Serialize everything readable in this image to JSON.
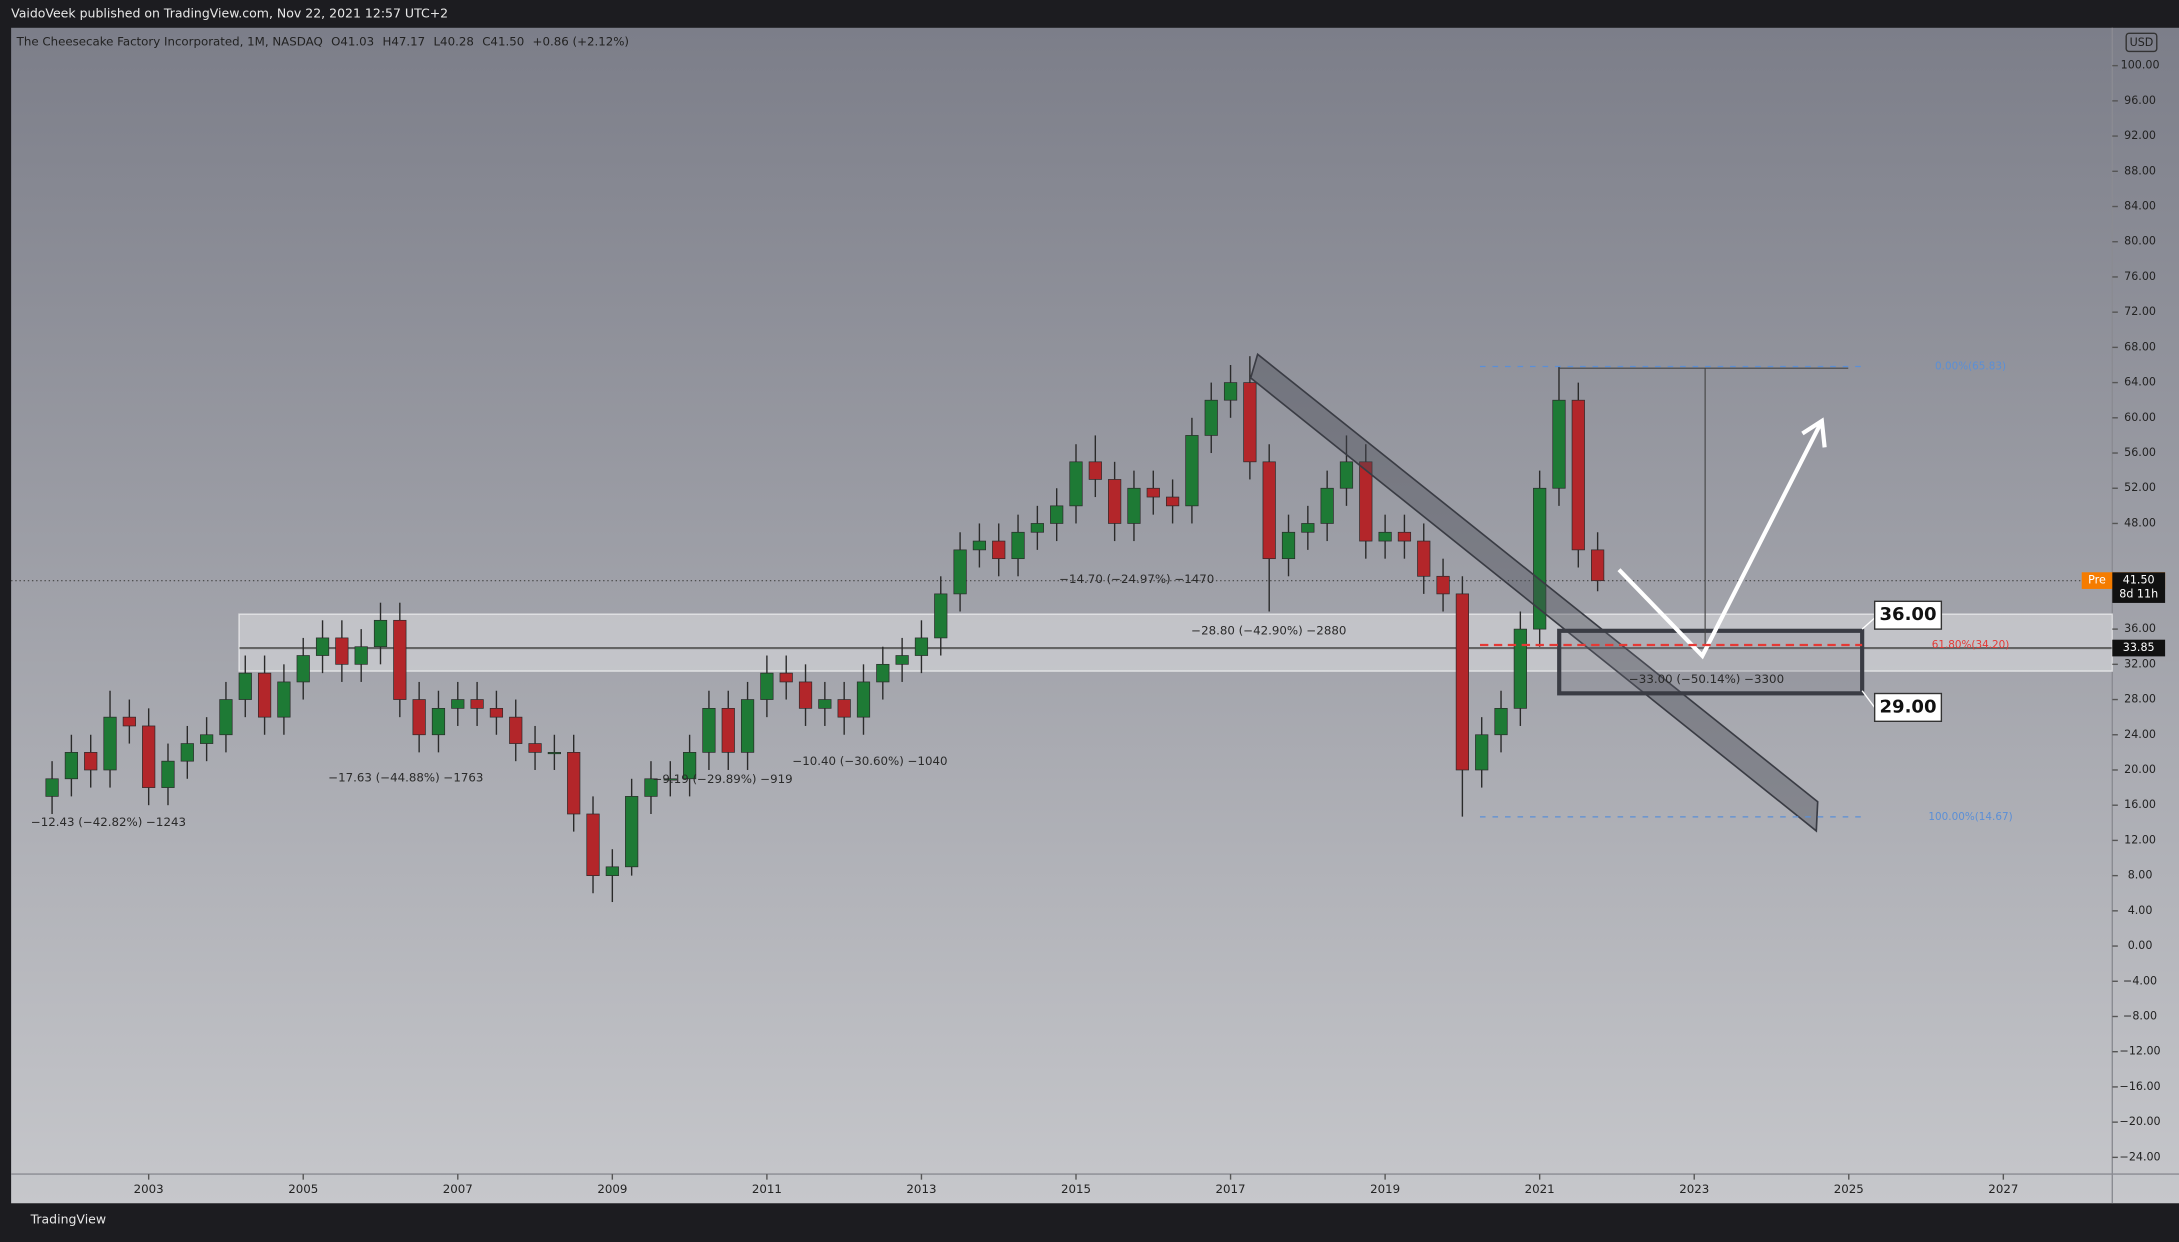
{
  "header": {
    "publisher": "VaidoVeek published on TradingView.com, Nov 22, 2021 12:57 UTC+2",
    "footer": "TradingView"
  },
  "chart_data": {
    "type": "candlestick",
    "title": "The Cheesecake Factory Incorporated, 1M, NASDAQ",
    "legend": [
      "O41.03",
      "H47.17",
      "L40.28",
      "C41.50",
      "+0.86 (+2.12%)"
    ],
    "currency": "USD",
    "x": [
      2001.75,
      2002,
      2002.25,
      2002.5,
      2002.75,
      2003,
      2003.25,
      2003.5,
      2003.75,
      2004,
      2004.25,
      2004.5,
      2004.75,
      2005,
      2005.25,
      2005.5,
      2005.75,
      2006,
      2006.25,
      2006.5,
      2006.75,
      2007,
      2007.25,
      2007.5,
      2007.75,
      2008,
      2008.25,
      2008.5,
      2008.75,
      2009,
      2009.25,
      2009.5,
      2009.75,
      2010,
      2010.25,
      2010.5,
      2010.75,
      2011,
      2011.25,
      2011.5,
      2011.75,
      2012,
      2012.25,
      2012.5,
      2012.75,
      2013,
      2013.25,
      2013.5,
      2013.75,
      2014,
      2014.25,
      2014.5,
      2014.75,
      2015,
      2015.25,
      2015.5,
      2015.75,
      2016,
      2016.25,
      2016.5,
      2016.75,
      2017,
      2017.25,
      2017.5,
      2017.75,
      2018,
      2018.25,
      2018.5,
      2018.75,
      2019,
      2019.25,
      2019.5,
      2019.75,
      2020,
      2020.25,
      2020.5,
      2020.75,
      2021,
      2021.25,
      2021.5,
      2021.75
    ],
    "open": [
      17,
      19,
      22,
      20,
      26,
      25,
      18,
      21,
      23,
      24,
      28,
      31,
      26,
      30,
      33,
      35,
      32,
      34,
      37,
      28,
      24,
      27,
      28,
      27,
      26,
      23,
      22,
      22,
      15,
      8,
      9,
      17,
      19,
      19,
      22,
      27,
      22,
      28,
      31,
      30,
      27,
      28,
      26,
      30,
      32,
      33,
      35,
      40,
      45,
      46,
      44,
      47,
      48,
      50,
      55,
      53,
      48,
      52,
      51,
      50,
      58,
      62,
      64,
      55,
      44,
      47,
      48,
      52,
      55,
      46,
      47,
      46,
      42,
      40,
      20,
      24,
      27,
      36,
      52,
      62,
      45
    ],
    "high": [
      21,
      24,
      24,
      29,
      28,
      27,
      23,
      25,
      26,
      30,
      33,
      33,
      32,
      35,
      37,
      37,
      36,
      39,
      39,
      30,
      29,
      30,
      30,
      29,
      28,
      25,
      24,
      24,
      17,
      11,
      19,
      21,
      21,
      24,
      29,
      29,
      30,
      33,
      33,
      32,
      30,
      30,
      32,
      34,
      35,
      37,
      42,
      47,
      48,
      48,
      49,
      50,
      52,
      57,
      58,
      55,
      54,
      54,
      53,
      60,
      64,
      66,
      67,
      57,
      49,
      50,
      54,
      58,
      57,
      49,
      49,
      48,
      44,
      42,
      26,
      29,
      38,
      54,
      65.8,
      64,
      47
    ],
    "low": [
      15,
      17,
      18,
      18,
      23,
      16,
      16,
      19,
      21,
      22,
      26,
      24,
      24,
      28,
      31,
      30,
      30,
      32,
      26,
      22,
      22,
      25,
      25,
      24,
      21,
      20,
      20,
      13,
      6,
      5,
      8,
      15,
      17,
      17,
      20,
      20,
      20,
      26,
      28,
      25,
      25,
      24,
      24,
      28,
      30,
      31,
      33,
      38,
      43,
      42,
      42,
      45,
      46,
      48,
      51,
      46,
      46,
      49,
      48,
      48,
      56,
      60,
      53,
      38,
      42,
      45,
      46,
      50,
      44,
      44,
      44,
      40,
      38,
      14.7,
      18,
      22,
      25,
      34,
      50,
      43,
      40.3
    ],
    "close": [
      19,
      22,
      20,
      26,
      25,
      18,
      21,
      23,
      24,
      28,
      31,
      26,
      30,
      33,
      35,
      32,
      34,
      37,
      28,
      24,
      27,
      28,
      27,
      26,
      23,
      22,
      22,
      15,
      8,
      9,
      17,
      19,
      19,
      22,
      27,
      22,
      28,
      31,
      30,
      27,
      28,
      26,
      30,
      32,
      33,
      35,
      40,
      45,
      46,
      44,
      47,
      48,
      50,
      55,
      53,
      48,
      52,
      51,
      50,
      58,
      62,
      64,
      55,
      44,
      47,
      48,
      52,
      55,
      46,
      47,
      46,
      42,
      40,
      20,
      24,
      27,
      36,
      52,
      62,
      45,
      41.5
    ],
    "up_color": "#1e7a35",
    "down_color": "#b3262a",
    "xlim": [
      2001.22,
      2028.41
    ],
    "xticks": [
      2003,
      2005,
      2007,
      2009,
      2011,
      2013,
      2015,
      2017,
      2019,
      2021,
      2023,
      2025,
      2027
    ],
    "ylim": [
      -25.9,
      104.3
    ],
    "yticks": [
      {
        "value": 100,
        "label": "100.00"
      },
      {
        "value": 96,
        "label": "96.00"
      },
      {
        "value": 92,
        "label": "92.00"
      },
      {
        "value": 88,
        "label": "88.00"
      },
      {
        "value": 84,
        "label": "84.00"
      },
      {
        "value": 80,
        "label": "80.00"
      },
      {
        "value": 76,
        "label": "76.00"
      },
      {
        "value": 72,
        "label": "72.00"
      },
      {
        "value": 68,
        "label": "68.00"
      },
      {
        "value": 64,
        "label": "64.00"
      },
      {
        "value": 60,
        "label": "60.00"
      },
      {
        "value": 56,
        "label": "56.00"
      },
      {
        "value": 52,
        "label": "52.00"
      },
      {
        "value": 48,
        "label": "48.00"
      },
      {
        "value": 36,
        "label": "36.00"
      },
      {
        "value": 32,
        "label": "32.00"
      },
      {
        "value": 28,
        "label": "28.00"
      },
      {
        "value": 24,
        "label": "24.00"
      },
      {
        "value": 20,
        "label": "20.00"
      },
      {
        "value": 16,
        "label": "16.00"
      },
      {
        "value": 12,
        "label": "12.00"
      },
      {
        "value": 8,
        "label": "8.00"
      },
      {
        "value": 4,
        "label": "4.00"
      },
      {
        "value": 0,
        "label": "0.00"
      },
      {
        "value": -4,
        "label": "−4.00"
      },
      {
        "value": -8,
        "label": "−8.00"
      },
      {
        "value": -12,
        "label": "−12.00"
      },
      {
        "value": -16,
        "label": "−16.00"
      },
      {
        "value": -20,
        "label": "−20.00"
      },
      {
        "value": -24,
        "label": "−24.00"
      }
    ],
    "pre_market": {
      "tag": "Pre",
      "value": 41.51
    },
    "last": {
      "value": 41.5,
      "label": "41.50",
      "countdown": "8d 11h"
    },
    "level": {
      "value": 33.85
    },
    "zone_top": {
      "value": 36,
      "label": "36.00"
    },
    "zone_bottom": {
      "value": 29,
      "label": "29.00"
    },
    "fib": [
      {
        "value": 65.83,
        "label": "0.00%(65.83)",
        "color": "#5b8fd6"
      },
      {
        "value": 34.2,
        "label": "61.80%(34.20)",
        "color": "#e53935"
      },
      {
        "value": 14.67,
        "label": "100.00%(14.67)",
        "color": "#5b8fd6"
      }
    ],
    "measures": [
      "−12.43 (−42.82%) −1243",
      "−17.63 (−44.88%) −1763",
      "−9.19 (−29.89%) −919",
      "−10.40 (−30.60%) −1040",
      "−14.70 (−24.97%) −1470",
      "−28.80 (−42.90%) −2880",
      "−33.00 (−50.14%) −3300"
    ]
  }
}
